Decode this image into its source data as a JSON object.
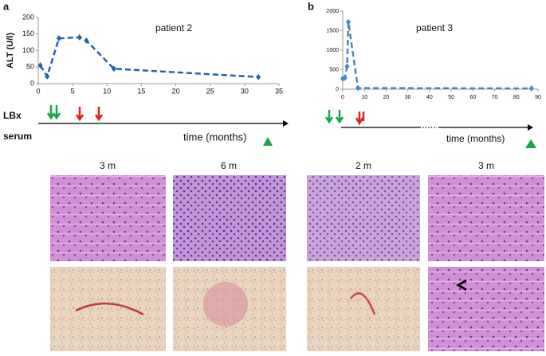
{
  "chart_data": [
    {
      "type": "line",
      "title": "patient 2",
      "y_label": "ALT (U/l)",
      "x": [
        0.3,
        1.3,
        3,
        6,
        7,
        11,
        32
      ],
      "values": [
        55,
        22,
        137,
        140,
        130,
        45,
        20
      ],
      "color": "#2463a8",
      "xlim": [
        0,
        35
      ],
      "xticks": [
        0,
        5,
        10,
        15,
        20,
        25,
        30,
        35
      ],
      "ylim": [
        0,
        200
      ],
      "yticks": [
        0,
        50,
        100,
        150,
        200
      ],
      "grid": false
    },
    {
      "type": "line",
      "title": "patient 3",
      "x": [
        0,
        1,
        2,
        2.6,
        7,
        87
      ],
      "values": [
        270,
        290,
        580,
        1720,
        30,
        20
      ],
      "color": "#4a86c0",
      "xlim": [
        0,
        90
      ],
      "xticks": [
        0,
        10,
        20,
        30,
        40,
        50,
        60,
        70,
        80,
        90
      ],
      "ylim": [
        0,
        2000
      ],
      "yticks": [
        0,
        500,
        1000,
        1500,
        2000
      ],
      "grid": false
    }
  ],
  "panels": {
    "a": "a",
    "b": "b"
  },
  "timeline": {
    "lbx": "LBx",
    "serum": "serum",
    "time_a": "time (months)",
    "time_b": "time (months)"
  },
  "images": {
    "labels": [
      "3 m",
      "6 m",
      "2 m",
      "3  m"
    ]
  }
}
